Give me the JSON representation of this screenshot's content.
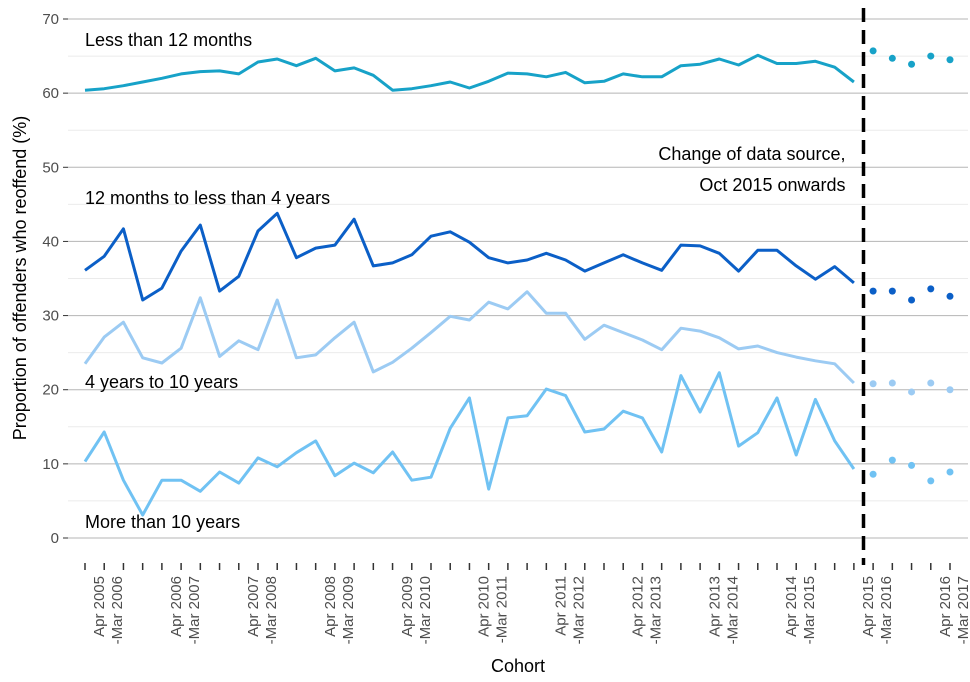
{
  "chart_data": {
    "type": "line",
    "y_label": "Proportion of offenders who reoffend (%)",
    "x_label": "Cohort",
    "annotation": [
      "Change of data source,",
      "Oct 2015 onwards"
    ],
    "ylim": [
      0,
      70
    ],
    "yticks": [
      0,
      10,
      20,
      30,
      40,
      50,
      60,
      70
    ],
    "grid": true,
    "categories": [
      null,
      "Apr 2005 -Mar 2006",
      null,
      null,
      null,
      "Apr 2006 -Mar 2007",
      null,
      null,
      null,
      "Apr 2007 -Mar 2008",
      null,
      null,
      null,
      "Apr 2008 -Mar 2009",
      null,
      null,
      null,
      "Apr 2009 -Mar 2010",
      null,
      null,
      null,
      "Apr 2010 -Mar 2011",
      null,
      null,
      null,
      "Apr 2011 -Mar 2012",
      null,
      null,
      null,
      "Apr 2012 -Mar 2013",
      null,
      null,
      null,
      "Apr 2013 -Mar 2014",
      null,
      null,
      null,
      "Apr 2014 -Mar 2015",
      null,
      null,
      null,
      "Apr 2015 -Mar 2016",
      null,
      null,
      null,
      "Apr 2016 -Mar 2017"
    ],
    "series": [
      {
        "name": "Less than 12 months",
        "color": "#17a2c8",
        "values": [
          60.4,
          60.6,
          61.0,
          61.5,
          62.0,
          62.6,
          62.9,
          63.0,
          62.6,
          64.2,
          64.6,
          63.7,
          64.7,
          63.0,
          63.4,
          62.4,
          60.4,
          60.6,
          61.0,
          61.5,
          60.7,
          61.6,
          62.7,
          62.6,
          62.2,
          62.8,
          61.4,
          61.6,
          62.6,
          62.2,
          62.2,
          63.7,
          63.9,
          64.6,
          63.8,
          65.1,
          64.0,
          64.0,
          64.3,
          63.5,
          61.5,
          null,
          null,
          null,
          null,
          null
        ],
        "values_new_source": [
          null,
          null,
          null,
          null,
          null,
          null,
          null,
          null,
          null,
          null,
          null,
          null,
          null,
          null,
          null,
          null,
          null,
          null,
          null,
          null,
          null,
          null,
          null,
          null,
          null,
          null,
          null,
          null,
          null,
          null,
          null,
          null,
          null,
          null,
          null,
          null,
          null,
          null,
          null,
          null,
          null,
          65.7,
          64.7,
          63.9,
          65.0,
          64.5
        ]
      },
      {
        "name": "12 months to less than 4 years",
        "color": "#0b5fc7",
        "values": [
          36.1,
          38.0,
          41.7,
          32.1,
          33.7,
          38.7,
          42.2,
          33.3,
          35.3,
          41.4,
          43.8,
          37.8,
          39.1,
          39.5,
          43.0,
          36.7,
          37.1,
          38.2,
          40.7,
          41.3,
          39.9,
          37.8,
          37.1,
          37.5,
          38.4,
          37.5,
          36.0,
          37.1,
          38.2,
          37.1,
          36.1,
          39.5,
          39.4,
          38.4,
          36.0,
          38.8,
          38.8,
          36.7,
          34.9,
          36.6,
          34.4,
          null,
          null,
          null,
          null,
          null
        ],
        "values_new_source": [
          null,
          null,
          null,
          null,
          null,
          null,
          null,
          null,
          null,
          null,
          null,
          null,
          null,
          null,
          null,
          null,
          null,
          null,
          null,
          null,
          null,
          null,
          null,
          null,
          null,
          null,
          null,
          null,
          null,
          null,
          null,
          null,
          null,
          null,
          null,
          null,
          null,
          null,
          null,
          null,
          null,
          33.3,
          33.3,
          32.1,
          33.6,
          32.6
        ]
      },
      {
        "name": "4 years to 10 years",
        "color": "#9ccbf3",
        "values": [
          23.5,
          27.1,
          29.1,
          24.3,
          23.6,
          25.6,
          32.4,
          24.5,
          26.6,
          25.4,
          32.1,
          24.3,
          24.7,
          27.0,
          29.1,
          22.4,
          23.7,
          25.6,
          27.7,
          29.9,
          29.4,
          31.8,
          30.9,
          33.2,
          30.3,
          30.3,
          26.8,
          28.7,
          27.7,
          26.7,
          25.4,
          28.3,
          27.9,
          27.0,
          25.5,
          25.9,
          25.0,
          24.4,
          23.9,
          23.5,
          20.9,
          null,
          null,
          null,
          null,
          null
        ],
        "values_new_source": [
          null,
          null,
          null,
          null,
          null,
          null,
          null,
          null,
          null,
          null,
          null,
          null,
          null,
          null,
          null,
          null,
          null,
          null,
          null,
          null,
          null,
          null,
          null,
          null,
          null,
          null,
          null,
          null,
          null,
          null,
          null,
          null,
          null,
          null,
          null,
          null,
          null,
          null,
          null,
          null,
          null,
          20.8,
          20.9,
          19.7,
          20.9,
          20.0
        ]
      },
      {
        "name": "More than 10 years",
        "color": "#70c2f3",
        "values": [
          10.3,
          14.3,
          7.8,
          3.1,
          7.8,
          7.8,
          6.3,
          8.9,
          7.4,
          10.8,
          9.6,
          11.5,
          13.1,
          8.4,
          10.1,
          8.8,
          11.6,
          7.8,
          8.2,
          14.8,
          18.9,
          6.6,
          16.2,
          16.5,
          20.1,
          19.2,
          14.3,
          14.7,
          17.1,
          16.2,
          11.6,
          21.9,
          17.0,
          22.3,
          12.4,
          14.2,
          18.9,
          11.2,
          18.7,
          13.1,
          9.3,
          null,
          null,
          null,
          null,
          null
        ],
        "values_new_source": [
          null,
          null,
          null,
          null,
          null,
          null,
          null,
          null,
          null,
          null,
          null,
          null,
          null,
          null,
          null,
          null,
          null,
          null,
          null,
          null,
          null,
          null,
          null,
          null,
          null,
          null,
          null,
          null,
          null,
          null,
          null,
          null,
          null,
          null,
          null,
          null,
          null,
          null,
          null,
          null,
          null,
          8.6,
          10.5,
          9.8,
          7.7,
          8.9
        ]
      }
    ]
  }
}
